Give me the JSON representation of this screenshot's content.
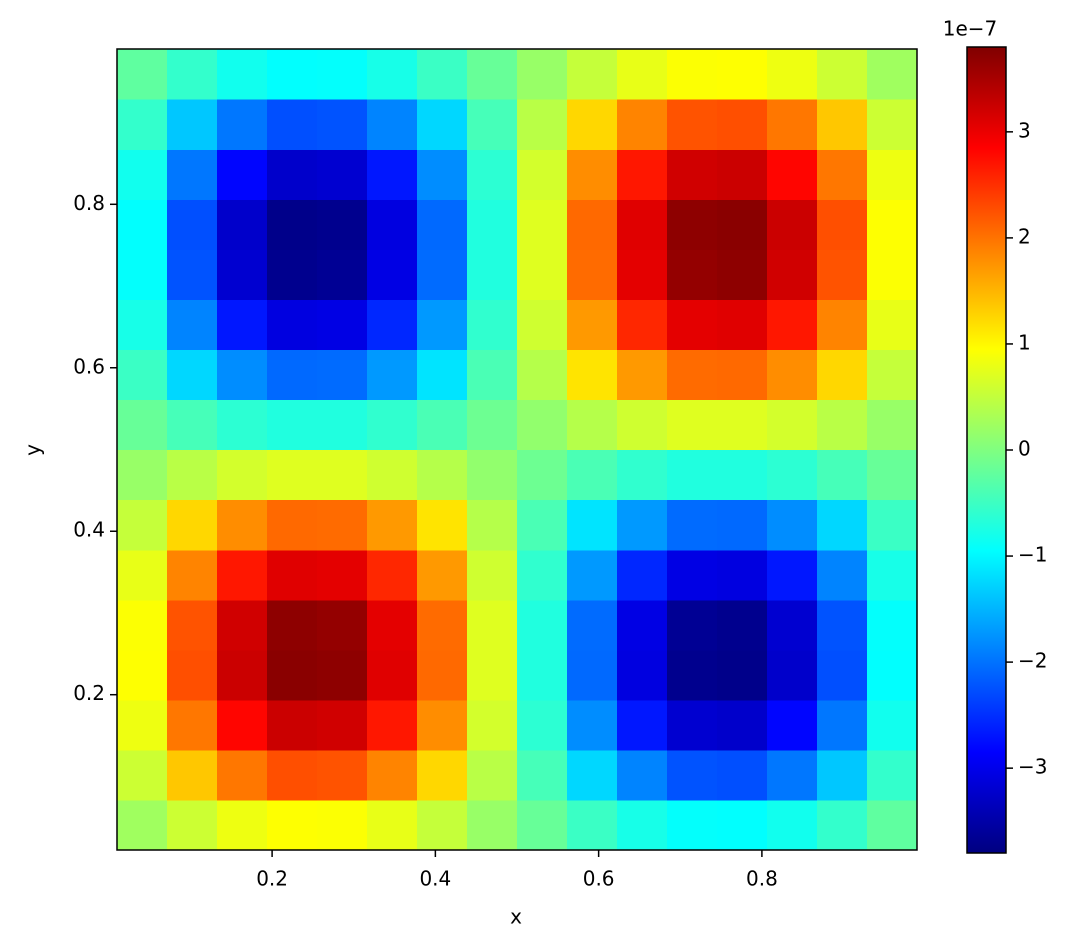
{
  "chart_data": {
    "type": "heatmap",
    "x_label": "x",
    "y_label": "y",
    "x": [
      0.0406,
      0.1019,
      0.1631,
      0.2244,
      0.2856,
      0.3469,
      0.4081,
      0.4694,
      0.5306,
      0.5919,
      0.6531,
      0.7144,
      0.7756,
      0.8369,
      0.8981,
      0.9594
    ],
    "y": [
      0.0406,
      0.1019,
      0.1631,
      0.2244,
      0.2856,
      0.3469,
      0.4081,
      0.4694,
      0.5306,
      0.5919,
      0.6531,
      0.7144,
      0.7756,
      0.8369,
      0.8981,
      0.9594
    ],
    "z": [
      [
        0.24,
        0.57,
        0.82,
        0.94,
        0.93,
        0.78,
        0.52,
        0.18,
        -0.18,
        -0.52,
        -0.78,
        -0.93,
        -0.94,
        -0.82,
        -0.57,
        -0.24
      ],
      [
        0.57,
        1.37,
        1.96,
        2.26,
        2.23,
        1.87,
        1.25,
        0.43,
        -0.43,
        -1.25,
        -1.87,
        -2.23,
        -2.26,
        -1.96,
        -1.37,
        -0.57
      ],
      [
        0.82,
        1.96,
        2.81,
        3.24,
        3.2,
        2.68,
        1.8,
        0.62,
        -0.62,
        -1.8,
        -2.68,
        -3.2,
        -3.24,
        -2.81,
        -1.96,
        -0.82
      ],
      [
        0.94,
        2.26,
        3.24,
        3.72,
        3.69,
        3.08,
        2.07,
        0.71,
        -0.71,
        -2.07,
        -3.08,
        -3.69,
        -3.72,
        -3.24,
        -2.26,
        -0.94
      ],
      [
        0.93,
        2.23,
        3.2,
        3.69,
        3.65,
        3.05,
        2.05,
        0.71,
        -0.71,
        -2.05,
        -3.05,
        -3.65,
        -3.69,
        -3.2,
        -2.23,
        -0.93
      ],
      [
        0.78,
        1.87,
        2.68,
        3.08,
        3.05,
        2.56,
        1.71,
        0.59,
        -0.59,
        -1.71,
        -2.56,
        -3.05,
        -3.08,
        -2.68,
        -1.87,
        -0.78
      ],
      [
        0.52,
        1.25,
        1.8,
        2.07,
        2.05,
        1.71,
        1.15,
        0.4,
        -0.4,
        -1.15,
        -1.71,
        -2.05,
        -2.07,
        -1.8,
        -1.25,
        -0.52
      ],
      [
        0.18,
        0.43,
        0.62,
        0.71,
        0.71,
        0.59,
        0.4,
        0.14,
        -0.14,
        -0.4,
        -0.59,
        -0.71,
        -0.71,
        -0.62,
        -0.43,
        -0.18
      ],
      [
        -0.18,
        -0.43,
        -0.62,
        -0.71,
        -0.71,
        -0.59,
        -0.4,
        -0.14,
        0.14,
        0.4,
        0.59,
        0.71,
        0.71,
        0.62,
        0.43,
        0.18
      ],
      [
        -0.52,
        -1.25,
        -1.8,
        -2.07,
        -2.05,
        -1.71,
        -1.15,
        -0.4,
        0.4,
        1.15,
        1.71,
        2.05,
        2.07,
        1.8,
        1.25,
        0.52
      ],
      [
        -0.78,
        -1.87,
        -2.68,
        -3.08,
        -3.05,
        -2.56,
        -1.71,
        -0.59,
        0.59,
        1.71,
        2.56,
        3.05,
        3.08,
        2.68,
        1.87,
        0.78
      ],
      [
        -0.93,
        -2.23,
        -3.2,
        -3.69,
        -3.65,
        -3.05,
        -2.05,
        -0.71,
        0.71,
        2.05,
        3.05,
        3.65,
        3.69,
        3.2,
        2.23,
        0.93
      ],
      [
        -0.94,
        -2.26,
        -3.24,
        -3.72,
        -3.69,
        -3.08,
        -2.07,
        -0.71,
        0.71,
        2.07,
        3.08,
        3.69,
        3.72,
        3.24,
        2.26,
        0.94
      ],
      [
        -0.82,
        -1.96,
        -2.81,
        -3.24,
        -3.2,
        -2.68,
        -1.8,
        -0.62,
        0.62,
        1.8,
        2.68,
        3.2,
        3.24,
        2.81,
        1.96,
        0.82
      ],
      [
        -0.57,
        -1.37,
        -1.96,
        -2.26,
        -2.23,
        -1.87,
        -1.25,
        -0.43,
        0.43,
        1.25,
        1.87,
        2.23,
        2.26,
        1.96,
        1.37,
        0.57
      ],
      [
        -0.24,
        -0.57,
        -0.82,
        -0.94,
        -0.93,
        -0.78,
        -0.52,
        -0.18,
        0.18,
        0.52,
        0.78,
        0.93,
        0.94,
        0.82,
        0.57,
        0.24
      ]
    ],
    "xlim": [
      0.01,
      0.99
    ],
    "ylim": [
      0.01,
      0.99
    ],
    "xticks": [
      0.2,
      0.4,
      0.6,
      0.8
    ],
    "yticks": [
      0.2,
      0.4,
      0.6,
      0.8
    ],
    "colormap": "jet",
    "colorbar": {
      "lim": [
        -3.8,
        3.8
      ],
      "offset_label": "1e−7",
      "ticks": [
        {
          "value": -3,
          "label": "−3"
        },
        {
          "value": -2,
          "label": "−2"
        },
        {
          "value": -1,
          "label": "−1"
        },
        0,
        1,
        2,
        3
      ]
    }
  }
}
